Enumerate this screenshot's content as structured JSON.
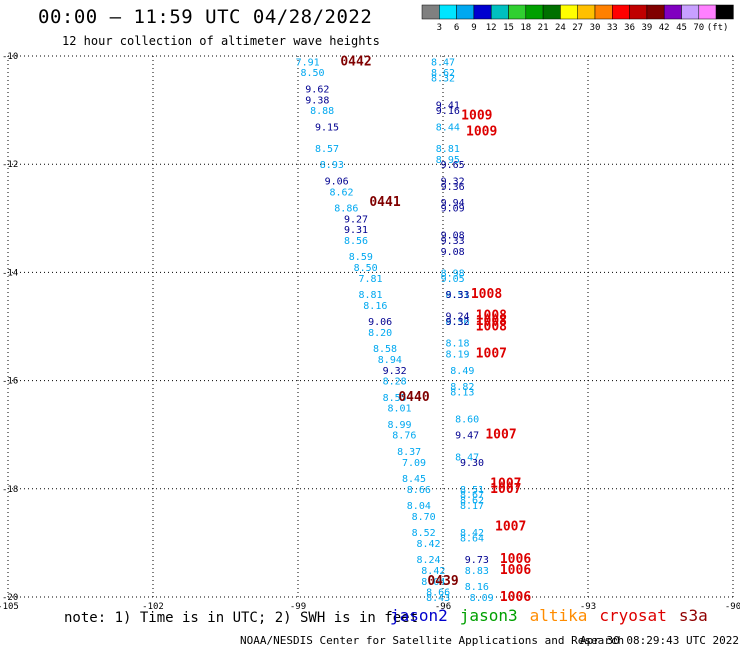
{
  "header": {
    "title": "00:00 – 11:59 UTC 04/28/2022",
    "subtitle": "12 hour collection of altimeter wave heights"
  },
  "colorscale": {
    "unit": "(ft)",
    "labels": [
      "3",
      "6",
      "9",
      "12",
      "15",
      "18",
      "21",
      "24",
      "27",
      "30",
      "33",
      "36",
      "39",
      "42",
      "45",
      "70"
    ],
    "colors": [
      "#808080",
      "#00e5ff",
      "#00a8f0",
      "#0000d0",
      "#00c0c0",
      "#30d030",
      "#00a000",
      "#007000",
      "#ffff00",
      "#ffc000",
      "#ff8000",
      "#ff0000",
      "#c00000",
      "#800000",
      "#8000c0",
      "#c8a0ff",
      "#ff80ff",
      "#000000"
    ]
  },
  "footer": {
    "note": "note: 1) Time is in UTC; 2) SWH is in feet",
    "satellites": [
      {
        "name": "jason2",
        "color": "#0000cc"
      },
      {
        "name": "jason3",
        "color": "#00a000"
      },
      {
        "name": "altika",
        "color": "#ff8c00"
      },
      {
        "name": "cryosat",
        "color": "#dd0000"
      },
      {
        "name": "s3a",
        "color": "#900000"
      }
    ],
    "credit": "NOAA/NESDIS Center for Satellite Applications and Research",
    "timestamp": "Apr 30 08:29:43 UTC 2022"
  },
  "chart_data": {
    "type": "scatter",
    "title": "12 hour collection of altimeter wave heights",
    "xlabel": "",
    "ylabel": "",
    "xlim": [
      -105,
      -90
    ],
    "ylim": [
      -20,
      -10
    ],
    "x_ticks": [
      "-105",
      "-102",
      "-99",
      "-96",
      "-93",
      "-90"
    ],
    "y_ticks": [
      "-10",
      "-12",
      "-14",
      "-16",
      "-18",
      "-20"
    ],
    "grid": true,
    "series": [
      {
        "color": "#00a8f0",
        "points": [
          {
            "x": -98.8,
            "y": -10.1,
            "label": "7.91"
          },
          {
            "x": -98.7,
            "y": -10.3,
            "label": "8.50"
          },
          {
            "x": -98.5,
            "y": -11.0,
            "label": "8.88"
          },
          {
            "x": -98.4,
            "y": -11.7,
            "label": "8.57"
          },
          {
            "x": -98.3,
            "y": -12.0,
            "label": "8.93"
          },
          {
            "x": -98.1,
            "y": -12.5,
            "label": "8.62"
          },
          {
            "x": -98.0,
            "y": -12.8,
            "label": "8.86"
          },
          {
            "x": -97.8,
            "y": -13.4,
            "label": "8.56"
          },
          {
            "x": -97.7,
            "y": -13.7,
            "label": "8.59"
          },
          {
            "x": -97.6,
            "y": -13.9,
            "label": "8.50"
          },
          {
            "x": -97.5,
            "y": -14.1,
            "label": "7.81"
          },
          {
            "x": -97.5,
            "y": -14.4,
            "label": "8.81"
          },
          {
            "x": -97.4,
            "y": -14.6,
            "label": "8.16"
          },
          {
            "x": -97.3,
            "y": -15.1,
            "label": "8.20"
          },
          {
            "x": -97.2,
            "y": -15.4,
            "label": "8.58"
          },
          {
            "x": -97.1,
            "y": -15.6,
            "label": "8.94"
          },
          {
            "x": -97.0,
            "y": -16.0,
            "label": "8.28"
          },
          {
            "x": -97.0,
            "y": -16.3,
            "label": "8.55"
          },
          {
            "x": -96.9,
            "y": -16.5,
            "label": "8.01"
          },
          {
            "x": -96.9,
            "y": -16.8,
            "label": "8.99"
          },
          {
            "x": -96.8,
            "y": -17.0,
            "label": "8.76"
          },
          {
            "x": -96.7,
            "y": -17.3,
            "label": "8.37"
          },
          {
            "x": -96.6,
            "y": -17.5,
            "label": "7.09"
          },
          {
            "x": -96.6,
            "y": -17.8,
            "label": "8.45"
          },
          {
            "x": -96.5,
            "y": -18.0,
            "label": "8.66"
          },
          {
            "x": -96.5,
            "y": -18.3,
            "label": "8.04"
          },
          {
            "x": -96.4,
            "y": -18.5,
            "label": "8.70"
          },
          {
            "x": -96.4,
            "y": -18.8,
            "label": "8.52"
          },
          {
            "x": -96.3,
            "y": -19.0,
            "label": "8.42"
          },
          {
            "x": -96.3,
            "y": -19.3,
            "label": "8.24"
          },
          {
            "x": -96.2,
            "y": -19.5,
            "label": "8.42"
          },
          {
            "x": -96.2,
            "y": -19.7,
            "label": "8.04"
          },
          {
            "x": -96.1,
            "y": -19.9,
            "label": "8.66"
          },
          {
            "x": -96.1,
            "y": -20.0,
            "label": "8.43"
          },
          {
            "x": -96.0,
            "y": -10.1,
            "label": "8.47"
          },
          {
            "x": -96.0,
            "y": -10.3,
            "label": "8.62"
          },
          {
            "x": -96.0,
            "y": -10.4,
            "label": "8.32"
          },
          {
            "x": -95.9,
            "y": -11.3,
            "label": "8.44"
          },
          {
            "x": -95.9,
            "y": -11.7,
            "label": "8.81"
          },
          {
            "x": -95.9,
            "y": -11.9,
            "label": "8.95"
          },
          {
            "x": -95.8,
            "y": -14.0,
            "label": "8.98"
          },
          {
            "x": -95.8,
            "y": -14.1,
            "label": "9.05"
          },
          {
            "x": -95.7,
            "y": -14.4,
            "label": "8.51"
          },
          {
            "x": -95.7,
            "y": -14.9,
            "label": "8.56"
          },
          {
            "x": -95.7,
            "y": -15.3,
            "label": "8.18"
          },
          {
            "x": -95.7,
            "y": -15.5,
            "label": "8.19"
          },
          {
            "x": -95.6,
            "y": -15.8,
            "label": "8.49"
          },
          {
            "x": -95.6,
            "y": -16.1,
            "label": "8.82"
          },
          {
            "x": -95.6,
            "y": -16.2,
            "label": "8.13"
          },
          {
            "x": -95.5,
            "y": -16.7,
            "label": "8.60"
          },
          {
            "x": -95.5,
            "y": -17.4,
            "label": "8.47"
          },
          {
            "x": -95.4,
            "y": -18.0,
            "label": "8.51"
          },
          {
            "x": -95.4,
            "y": -18.1,
            "label": "8.67"
          },
          {
            "x": -95.4,
            "y": -18.2,
            "label": "8.62"
          },
          {
            "x": -95.4,
            "y": -18.3,
            "label": "8.17"
          },
          {
            "x": -95.4,
            "y": -18.8,
            "label": "8.42"
          },
          {
            "x": -95.4,
            "y": -18.9,
            "label": "8.64"
          },
          {
            "x": -95.3,
            "y": -19.5,
            "label": "8.83"
          },
          {
            "x": -95.3,
            "y": -19.8,
            "label": "8.16"
          },
          {
            "x": -95.2,
            "y": -20.0,
            "label": "8.09"
          }
        ]
      },
      {
        "color": "#000090",
        "points": [
          {
            "x": -98.6,
            "y": -10.6,
            "label": "9.62"
          },
          {
            "x": -98.6,
            "y": -10.8,
            "label": "9.38"
          },
          {
            "x": -98.4,
            "y": -11.3,
            "label": "9.15"
          },
          {
            "x": -98.2,
            "y": -12.3,
            "label": "9.06"
          },
          {
            "x": -97.8,
            "y": -13.0,
            "label": "9.27"
          },
          {
            "x": -97.8,
            "y": -13.2,
            "label": "9.31"
          },
          {
            "x": -97.3,
            "y": -14.9,
            "label": "9.06"
          },
          {
            "x": -97.0,
            "y": -15.8,
            "label": "9.32"
          },
          {
            "x": -95.9,
            "y": -10.9,
            "label": "9.41"
          },
          {
            "x": -95.9,
            "y": -11.0,
            "label": "9.16"
          },
          {
            "x": -95.8,
            "y": -12.0,
            "label": "9.65"
          },
          {
            "x": -95.8,
            "y": -12.3,
            "label": "9.32"
          },
          {
            "x": -95.8,
            "y": -12.4,
            "label": "9.36"
          },
          {
            "x": -95.8,
            "y": -12.7,
            "label": "9.94"
          },
          {
            "x": -95.8,
            "y": -12.8,
            "label": "9.09"
          },
          {
            "x": -95.8,
            "y": -13.3,
            "label": "9.08"
          },
          {
            "x": -95.8,
            "y": -13.4,
            "label": "9.33"
          },
          {
            "x": -95.8,
            "y": -13.6,
            "label": "9.08"
          },
          {
            "x": -95.7,
            "y": -14.4,
            "label": "9.33"
          },
          {
            "x": -95.7,
            "y": -14.8,
            "label": "9.24"
          },
          {
            "x": -95.7,
            "y": -14.9,
            "label": "9.32"
          },
          {
            "x": -95.5,
            "y": -17.0,
            "label": "9.47"
          },
          {
            "x": -95.4,
            "y": -17.5,
            "label": "9.30"
          },
          {
            "x": -95.3,
            "y": -19.3,
            "label": "9.73"
          }
        ]
      },
      {
        "color": "#dd0000",
        "points": [
          {
            "x": -95.3,
            "y": -11.1,
            "label": "1009"
          },
          {
            "x": -95.2,
            "y": -11.4,
            "label": "1009"
          },
          {
            "x": -95.1,
            "y": -14.4,
            "label": "1008"
          },
          {
            "x": -95.0,
            "y": -14.8,
            "label": "1008"
          },
          {
            "x": -95.0,
            "y": -14.9,
            "label": "1008"
          },
          {
            "x": -95.0,
            "y": -15.0,
            "label": "1008"
          },
          {
            "x": -95.0,
            "y": -15.5,
            "label": "1007"
          },
          {
            "x": -94.8,
            "y": -17.0,
            "label": "1007"
          },
          {
            "x": -94.7,
            "y": -17.9,
            "label": "1007"
          },
          {
            "x": -94.7,
            "y": -18.0,
            "label": "1007"
          },
          {
            "x": -94.6,
            "y": -18.7,
            "label": "1007"
          },
          {
            "x": -94.5,
            "y": -19.3,
            "label": "1006"
          },
          {
            "x": -94.5,
            "y": -19.5,
            "label": "1006"
          },
          {
            "x": -94.5,
            "y": -20.0,
            "label": "1006"
          }
        ]
      },
      {
        "color": "#800000",
        "points": [
          {
            "x": -97.8,
            "y": -10.1,
            "label": "0442"
          },
          {
            "x": -97.2,
            "y": -12.7,
            "label": "0441"
          },
          {
            "x": -96.6,
            "y": -16.3,
            "label": "0440"
          },
          {
            "x": -96.0,
            "y": -19.7,
            "label": "0439"
          }
        ]
      }
    ]
  }
}
